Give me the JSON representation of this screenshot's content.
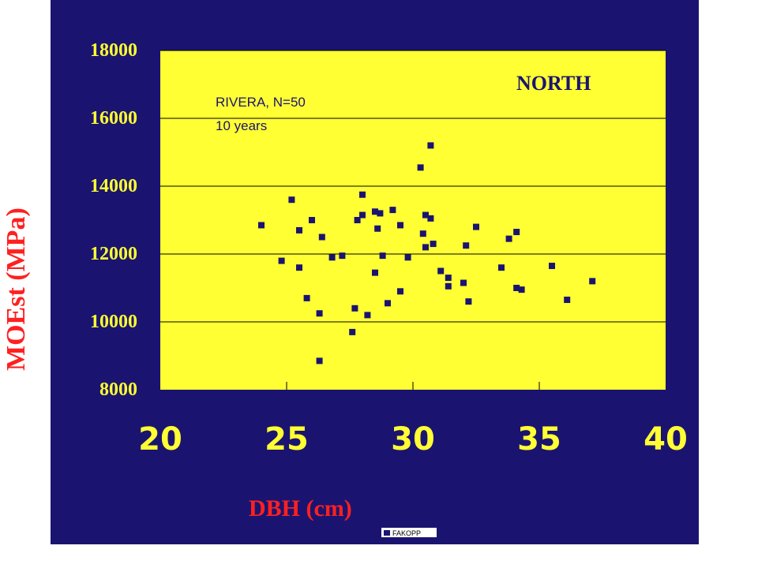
{
  "colors": {
    "background": "#1a1470",
    "plot_area": "#ffff33",
    "markers": "#1a1470",
    "axis_labels": "#ff2020",
    "tick_labels": "#ffff33"
  },
  "logo_text": "FAKOPP",
  "chart_data": {
    "type": "scatter",
    "xlabel": "DBH (cm)",
    "ylabel": "MOEst (MPa)",
    "xlim": [
      20,
      40
    ],
    "ylim": [
      8000,
      18000
    ],
    "x_ticks": [
      20,
      25,
      30,
      35,
      40
    ],
    "y_ticks": [
      8000,
      10000,
      12000,
      14000,
      16000,
      18000
    ],
    "grid": "horizontal",
    "annotations": {
      "region": "NORTH",
      "line1": "RIVERA, N=50",
      "line2": "10 years"
    },
    "points": [
      [
        24.0,
        12850
      ],
      [
        24.8,
        11800
      ],
      [
        25.2,
        13600
      ],
      [
        25.5,
        11600
      ],
      [
        25.5,
        12700
      ],
      [
        25.8,
        10700
      ],
      [
        26.0,
        13000
      ],
      [
        26.3,
        10250
      ],
      [
        26.4,
        12500
      ],
      [
        26.8,
        11900
      ],
      [
        26.3,
        8850
      ],
      [
        27.2,
        11950
      ],
      [
        27.6,
        9700
      ],
      [
        27.7,
        10400
      ],
      [
        27.8,
        13000
      ],
      [
        28.0,
        13750
      ],
      [
        28.0,
        13150
      ],
      [
        28.2,
        10200
      ],
      [
        28.5,
        11450
      ],
      [
        28.5,
        13250
      ],
      [
        28.6,
        12750
      ],
      [
        28.7,
        13200
      ],
      [
        28.8,
        11950
      ],
      [
        29.0,
        10550
      ],
      [
        29.2,
        13300
      ],
      [
        29.5,
        12850
      ],
      [
        29.5,
        10900
      ],
      [
        29.8,
        11900
      ],
      [
        30.3,
        14550
      ],
      [
        30.4,
        12600
      ],
      [
        30.5,
        12200
      ],
      [
        30.5,
        13150
      ],
      [
        30.7,
        15200
      ],
      [
        30.7,
        13050
      ],
      [
        30.8,
        12300
      ],
      [
        31.1,
        11500
      ],
      [
        31.4,
        11300
      ],
      [
        31.4,
        11050
      ],
      [
        32.0,
        11150
      ],
      [
        32.1,
        12250
      ],
      [
        32.2,
        10600
      ],
      [
        32.5,
        12800
      ],
      [
        33.5,
        11600
      ],
      [
        33.8,
        12450
      ],
      [
        34.1,
        12650
      ],
      [
        34.1,
        11000
      ],
      [
        34.3,
        10950
      ],
      [
        35.5,
        11650
      ],
      [
        36.1,
        10650
      ],
      [
        37.1,
        11200
      ]
    ]
  }
}
